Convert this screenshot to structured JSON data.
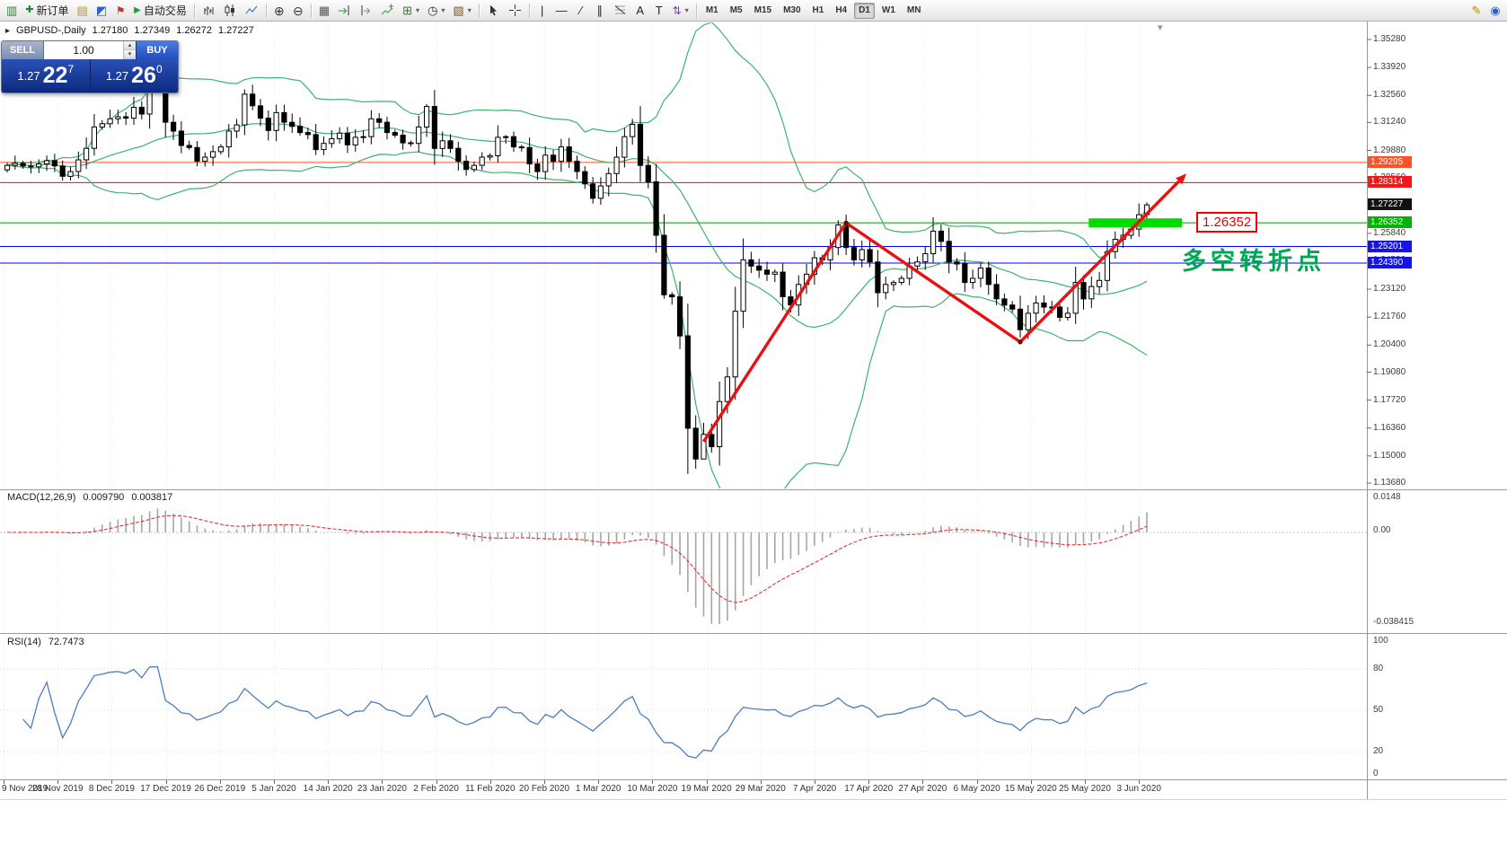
{
  "toolbar": {
    "items": [
      {
        "type": "icon",
        "name": "terminal-icon",
        "glyph": "▥",
        "color": "#3a7d3a"
      },
      {
        "type": "button",
        "name": "new-order-button",
        "label": "新订单",
        "glyph": "✚",
        "color": "#18892e",
        "size": 11
      },
      {
        "type": "icon",
        "name": "charts-icon",
        "glyph": "▤",
        "color": "#c8930a"
      },
      {
        "type": "icon",
        "name": "profiles-icon",
        "glyph": "◩",
        "color": "#2b62c4"
      },
      {
        "type": "icon",
        "name": "alerts-icon",
        "glyph": "⚑",
        "color": "#c0392b",
        "size": 12
      },
      {
        "type": "button",
        "name": "auto-trading-button",
        "label": "自动交易",
        "glyph": "▶",
        "color": "#1da332",
        "size": 10
      },
      {
        "type": "sep"
      },
      {
        "type": "svgicon",
        "name": "bar-chart-icon",
        "icon": "bars"
      },
      {
        "type": "svgicon",
        "name": "candlestick-chart-icon",
        "icon": "candles"
      },
      {
        "type": "svgicon",
        "name": "line-chart-icon",
        "icon": "line"
      },
      {
        "type": "sep"
      },
      {
        "type": "icon",
        "name": "zoom-in-icon",
        "glyph": "⊕",
        "color": "#333333",
        "size": 14
      },
      {
        "type": "icon",
        "name": "zoom-out-icon",
        "glyph": "⊖",
        "color": "#333333",
        "size": 14
      },
      {
        "type": "sep"
      },
      {
        "type": "icon",
        "name": "tile-windows-icon",
        "glyph": "▦",
        "color": "#555555"
      },
      {
        "type": "svgicon",
        "name": "auto-scroll-icon",
        "icon": "autoscroll"
      },
      {
        "type": "svgicon",
        "name": "chart-shift-icon",
        "icon": "chartshift"
      },
      {
        "type": "svgicon",
        "name": "indicators-icon",
        "icon": "indicator"
      },
      {
        "type": "dropdown",
        "name": "new-chart-dropdown",
        "glyph": "⊞",
        "color": "#2b7d2b"
      },
      {
        "type": "dropdown",
        "name": "periods-dropdown",
        "glyph": "◷",
        "color": "#333333"
      },
      {
        "type": "dropdown",
        "name": "templates-dropdown",
        "glyph": "▧",
        "color": "#7a5c1e"
      },
      {
        "type": "sep"
      },
      {
        "type": "svgicon",
        "name": "cursor-icon",
        "icon": "cursor"
      },
      {
        "type": "svgicon",
        "name": "crosshair-icon",
        "icon": "crosshair"
      },
      {
        "type": "sep"
      },
      {
        "type": "icon",
        "name": "vertical-line-icon",
        "glyph": "|",
        "color": "#222222"
      },
      {
        "type": "icon",
        "name": "horizontal-line-icon",
        "glyph": "—",
        "color": "#222222"
      },
      {
        "type": "icon",
        "name": "trendline-icon",
        "glyph": "∕",
        "color": "#222222"
      },
      {
        "type": "icon",
        "name": "channel-icon",
        "glyph": "∥",
        "color": "#222222"
      },
      {
        "type": "svgicon",
        "name": "fibonacci-icon",
        "icon": "fib"
      },
      {
        "type": "icon",
        "name": "text-icon",
        "glyph": "A",
        "color": "#222222"
      },
      {
        "type": "icon",
        "name": "text-label-icon",
        "glyph": "T",
        "color": "#222222"
      },
      {
        "type": "dropdown",
        "name": "arrows-dropdown",
        "glyph": "⇅",
        "color": "#7a3fb0",
        "size": 12
      },
      {
        "type": "sep"
      }
    ],
    "timeframes": [
      "M1",
      "M5",
      "M15",
      "M30",
      "H1",
      "H4",
      "D1",
      "W1",
      "MN"
    ],
    "active_timeframe": "D1",
    "right_items": [
      {
        "type": "icon",
        "name": "edit-icon",
        "glyph": "✎",
        "color": "#b8860b"
      },
      {
        "type": "icon",
        "name": "community-icon",
        "glyph": "◉",
        "color": "#2b62c4"
      }
    ]
  },
  "chart_header": {
    "collapse_icon": "▸",
    "symbol_period": "GBPUSD-,Daily",
    "open": "1.27180",
    "high": "1.27349",
    "low": "1.26272",
    "close": "1.27227"
  },
  "trade_panel": {
    "sell_label": "SELL",
    "buy_label": "BUY",
    "volume": "1.00",
    "spin_up": "▴",
    "spin_down": "▾",
    "sell_base": "1.27",
    "sell_pips": "22",
    "sell_sup": "7",
    "buy_base": "1.27",
    "buy_pips": "26",
    "buy_sup": "0"
  },
  "shift_marker_icon": "▾",
  "chart_data": {
    "type": "candlestick",
    "symbol": "GBPUSD",
    "period": "Daily",
    "y_axis": {
      "min": 1.1368,
      "max": 1.3528,
      "labels": [
        "1.35280",
        "1.33920",
        "1.32560",
        "1.31240",
        "1.29880",
        "1.28560",
        "1.25840",
        "1.24520",
        "1.23120",
        "1.21760",
        "1.20400",
        "1.19080",
        "1.17720",
        "1.16360",
        "1.15000",
        "1.13680"
      ]
    },
    "x_labels": [
      "9 Nov 2019",
      "28 Nov 2019",
      "8 Dec 2019",
      "17 Dec 2019",
      "26 Dec 2019",
      "5 Jan 2020",
      "14 Jan 2020",
      "23 Jan 2020",
      "2 Feb 2020",
      "11 Feb 2020",
      "20 Feb 2020",
      "1 Mar 2020",
      "10 Mar 2020",
      "19 Mar 2020",
      "29 Mar 2020",
      "7 Apr 2020",
      "17 Apr 2020",
      "27 Apr 2020",
      "6 May 2020",
      "15 May 2020",
      "25 May 2020",
      "3 Jun 2020"
    ],
    "closes": [
      1.2915,
      1.2925,
      1.2912,
      1.2908,
      1.2922,
      1.2938,
      1.2912,
      1.2862,
      1.2885,
      1.2942,
      1.2998,
      1.3102,
      1.3118,
      1.3142,
      1.3152,
      1.3145,
      1.3198,
      1.3165,
      1.3332,
      1.3335,
      1.3125,
      1.3082,
      1.3012,
      1.3002,
      1.2935,
      1.2955,
      1.2982,
      1.3005,
      1.3082,
      1.3112,
      1.3262,
      1.3205,
      1.3145,
      1.3085,
      1.3172,
      1.3125,
      1.3105,
      1.3075,
      1.3065,
      1.2992,
      1.3022,
      1.3045,
      1.3072,
      1.3015,
      1.3052,
      1.3055,
      1.3142,
      1.3125,
      1.3075,
      1.3062,
      1.3025,
      1.3022,
      1.3102,
      1.3202,
      1.2998,
      1.3035,
      1.2998,
      1.2935,
      1.2895,
      1.2915,
      1.2955,
      1.2962,
      1.3052,
      1.3055,
      1.3005,
      1.3002,
      1.2922,
      1.2885,
      1.2965,
      1.2935,
      1.3005,
      1.2935,
      1.2885,
      1.2825,
      1.2755,
      1.2815,
      1.2875,
      1.2955,
      1.3055,
      1.3115,
      1.2915,
      1.2835,
      1.2575,
      1.2285,
      1.2275,
      1.2085,
      1.1635,
      1.1485,
      1.1605,
      1.1545,
      1.1765,
      1.1885,
      1.2205,
      1.2455,
      1.2425,
      1.2405,
      1.2385,
      1.2395,
      1.2275,
      1.2235,
      1.2335,
      1.2385,
      1.2465,
      1.2455,
      1.2515,
      1.2625,
      1.2515,
      1.2455,
      1.2505,
      1.2445,
      1.2295,
      1.2335,
      1.2345,
      1.2365,
      1.2425,
      1.2445,
      1.2485,
      1.2595,
      1.2545,
      1.2445,
      1.2435,
      1.2345,
      1.2365,
      1.2415,
      1.2335,
      1.2265,
      1.2235,
      1.2215,
      1.2115,
      1.2195,
      1.2245,
      1.2225,
      1.2225,
      1.2175,
      1.2195,
      1.2345,
      1.2265,
      1.2325,
      1.2355,
      1.2495,
      1.2555,
      1.2575,
      1.2605,
      1.2675,
      1.27227
    ],
    "special_wicks": {
      "18": {
        "high": 1.3512
      },
      "30": {
        "high": 1.3285
      },
      "53": {
        "high": 1.3214
      },
      "82": {
        "low": 1.249
      },
      "83": {
        "low": 1.2266
      },
      "86": {
        "low": 1.1412
      },
      "87": {
        "low": 1.1438
      },
      "88": {
        "low": 1.1512
      },
      "105": {
        "high": 1.2648
      },
      "128": {
        "low": 1.2076
      },
      "144": {
        "high": 1.27349,
        "low": 1.26272
      }
    },
    "overlays": {
      "bollinger": {
        "period": 20,
        "deviation": 2,
        "color": "#3cb371"
      }
    },
    "hlines": [
      {
        "price": 1.29295,
        "color": "#ff5026"
      },
      {
        "price": 1.28314,
        "color": "#ff0000"
      },
      {
        "price": 1.26352,
        "color": "#009b00"
      },
      {
        "price": 1.25201,
        "color": "#0000ff"
      },
      {
        "price": 1.2439,
        "color": "#0000ff"
      }
    ],
    "price_markers": [
      {
        "label": "1.29295",
        "price": 1.29295,
        "bg": "#ff5026"
      },
      {
        "label": "1.28314",
        "price": 1.28314,
        "bg": "#fb1414"
      },
      {
        "label": "1.27227",
        "price": 1.27227,
        "bg": "#111111"
      },
      {
        "label": "1.26352",
        "price": 1.26352,
        "bg": "#00b400"
      },
      {
        "label": "1.25201",
        "price": 1.25201,
        "bg": "#1414e6"
      },
      {
        "label": "1.24390",
        "price": 1.2439,
        "bg": "#1414e6"
      }
    ],
    "green_band": {
      "i1": 137,
      "i2": 148,
      "price": 1.26352,
      "color": "#00dc00"
    },
    "zigzag": {
      "color": "#e81010",
      "points": [
        [
          88,
          1.157
        ],
        [
          106,
          1.2635
        ],
        [
          128,
          1.2055
        ],
        [
          149,
          1.2875
        ]
      ]
    },
    "callout": {
      "text": "1.26352"
    },
    "note": {
      "text": "多空转折点"
    },
    "indicators": {
      "macd": {
        "label": "MACD(12,26,9)",
        "value_main": "0.009790",
        "value_signal": "0.003817",
        "axis": [
          "0.0148",
          "0.00",
          "-0.038415"
        ]
      },
      "rsi": {
        "label": "RSI(14)",
        "value": "72.7473",
        "axis": [
          "100",
          "80",
          "50",
          "20",
          "0"
        ]
      }
    }
  }
}
